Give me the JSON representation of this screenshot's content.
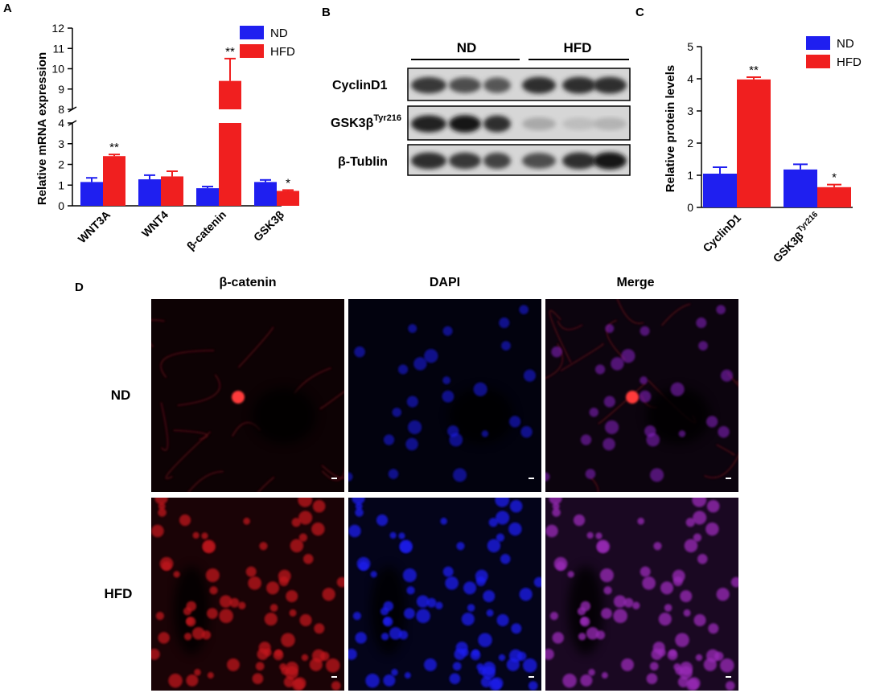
{
  "panels": {
    "a": "A",
    "b": "B",
    "c": "C",
    "d": "D"
  },
  "colors": {
    "nd": "#1f1ff0",
    "hfd": "#f01f1f"
  },
  "chart_data": [
    {
      "panel": "A",
      "type": "bar",
      "ylabel": "Relative mRNA expression",
      "xlabel": "",
      "categories": [
        "WNT3A",
        "WNT4",
        "β-catenin",
        "GSK3β"
      ],
      "series": [
        {
          "name": "ND",
          "values": [
            1.15,
            1.28,
            0.85,
            1.15
          ],
          "errors": [
            0.2,
            0.2,
            0.08,
            0.1
          ]
        },
        {
          "name": "HFD",
          "values": [
            2.4,
            1.42,
            9.4,
            0.72
          ],
          "errors": [
            0.08,
            0.25,
            1.1,
            0.04
          ]
        }
      ],
      "significance": [
        "**",
        "",
        "**",
        "*"
      ],
      "broken_axis": true,
      "lower_range": [
        0,
        4
      ],
      "upper_range": [
        8,
        12
      ],
      "lower_ticks": [
        "0",
        "1",
        "2",
        "3",
        "4"
      ],
      "upper_ticks": [
        "8",
        "9",
        "10",
        "11",
        "12"
      ],
      "legend": [
        "ND",
        "HFD"
      ],
      "legend_position": "top-right"
    },
    {
      "panel": "C",
      "type": "bar",
      "ylabel": "Relative protein levels",
      "xlabel": "",
      "categories": [
        "CyclinD1",
        "GSK3β"
      ],
      "category_superscripts": [
        "",
        "Tyr216"
      ],
      "series": [
        {
          "name": "ND",
          "values": [
            1.05,
            1.18
          ],
          "errors": [
            0.2,
            0.16
          ]
        },
        {
          "name": "HFD",
          "values": [
            3.98,
            0.63
          ],
          "errors": [
            0.07,
            0.08
          ]
        }
      ],
      "significance": [
        "**",
        "*"
      ],
      "ylim": [
        0,
        5
      ],
      "yticks": [
        "0",
        "1",
        "2",
        "3",
        "4",
        "5"
      ],
      "legend": [
        "ND",
        "HFD"
      ],
      "legend_position": "top-right"
    }
  ],
  "blot": {
    "groups": [
      "ND",
      "HFD"
    ],
    "rows": [
      {
        "label": "CyclinD1",
        "sup": ""
      },
      {
        "label": "GSK3β",
        "sup": "Tyr216"
      },
      {
        "label": "β-Tublin",
        "sup": ""
      }
    ],
    "intensities": [
      [
        0.8,
        0.7,
        0.65,
        0.85,
        0.85,
        0.85
      ],
      [
        0.9,
        0.95,
        0.85,
        0.25,
        0.15,
        0.2
      ],
      [
        0.85,
        0.8,
        0.75,
        0.7,
        0.85,
        0.95
      ]
    ]
  },
  "microscopy": {
    "columns": [
      "β-catenin",
      "DAPI",
      "Merge"
    ],
    "rows": [
      "ND",
      "HFD"
    ]
  }
}
